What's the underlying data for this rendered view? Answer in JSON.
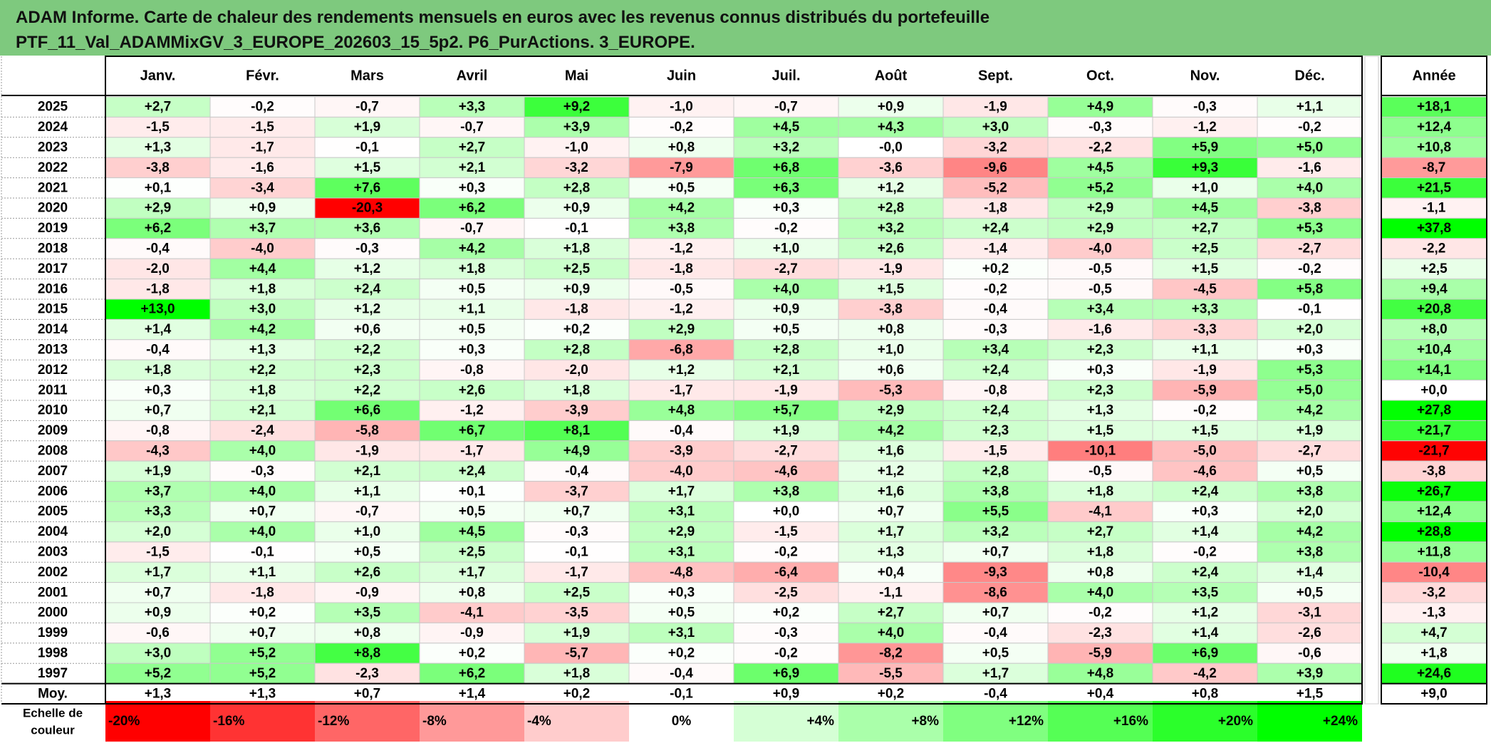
{
  "title_lines": [
    "ADAM Informe. Carte de chaleur des rendements mensuels en euros avec les revenus connus distribués du portefeuille",
    "PTF_11_Val_ADAMMixGV_3_EUROPE_202603_15_5p2. P6_PurActions. 3_EUROPE."
  ],
  "chart_data": {
    "type": "heatmap",
    "months": [
      "Janv.",
      "Févr.",
      "Mars",
      "Avril",
      "Mai",
      "Juin",
      "Juil.",
      "Août",
      "Sept.",
      "Oct.",
      "Nov.",
      "Déc."
    ],
    "annual_header": "Année",
    "rows": [
      {
        "year": "2025",
        "values": [
          "+2,7",
          "-0,2",
          "-0,7",
          "+3,3",
          "+9,2",
          "-1,0",
          "-0,7",
          "+0,9",
          "-1,9",
          "+4,9",
          "-0,3",
          "+1,1"
        ],
        "annual": "+18,1"
      },
      {
        "year": "2024",
        "values": [
          "-1,5",
          "-1,5",
          "+1,9",
          "-0,7",
          "+3,9",
          "-0,2",
          "+4,5",
          "+4,3",
          "+3,0",
          "-0,3",
          "-1,2",
          "-0,2"
        ],
        "annual": "+12,4"
      },
      {
        "year": "2023",
        "values": [
          "+1,3",
          "-1,7",
          "-0,1",
          "+2,7",
          "-1,0",
          "+0,8",
          "+3,2",
          "-0,0",
          "-3,2",
          "-2,2",
          "+5,9",
          "+5,0"
        ],
        "annual": "+10,8"
      },
      {
        "year": "2022",
        "values": [
          "-3,8",
          "-1,6",
          "+1,5",
          "+2,1",
          "-3,2",
          "-7,9",
          "+6,8",
          "-3,6",
          "-9,6",
          "+4,5",
          "+9,3",
          "-1,6"
        ],
        "annual": "-8,7"
      },
      {
        "year": "2021",
        "values": [
          "+0,1",
          "-3,4",
          "+7,6",
          "+0,3",
          "+2,8",
          "+0,5",
          "+6,3",
          "+1,2",
          "-5,2",
          "+5,2",
          "+1,0",
          "+4,0"
        ],
        "annual": "+21,5"
      },
      {
        "year": "2020",
        "values": [
          "+2,9",
          "+0,9",
          "-20,3",
          "+6,2",
          "+0,9",
          "+4,2",
          "+0,3",
          "+2,8",
          "-1,8",
          "+2,9",
          "+4,5",
          "-3,8"
        ],
        "annual": "-1,1"
      },
      {
        "year": "2019",
        "values": [
          "+6,2",
          "+3,7",
          "+3,6",
          "-0,7",
          "-0,1",
          "+3,8",
          "-0,2",
          "+3,2",
          "+2,4",
          "+2,9",
          "+2,7",
          "+5,3"
        ],
        "annual": "+37,8"
      },
      {
        "year": "2018",
        "values": [
          "-0,4",
          "-4,0",
          "-0,3",
          "+4,2",
          "+1,8",
          "-1,2",
          "+1,0",
          "+2,6",
          "-1,4",
          "-4,0",
          "+2,5",
          "-2,7"
        ],
        "annual": "-2,2"
      },
      {
        "year": "2017",
        "values": [
          "-2,0",
          "+4,4",
          "+1,2",
          "+1,8",
          "+2,5",
          "-1,8",
          "-2,7",
          "-1,9",
          "+0,2",
          "-0,5",
          "+1,5",
          "-0,2"
        ],
        "annual": "+2,5"
      },
      {
        "year": "2016",
        "values": [
          "-1,8",
          "+1,8",
          "+2,4",
          "+0,5",
          "+0,9",
          "-0,5",
          "+4,0",
          "+1,5",
          "-0,2",
          "-0,5",
          "-4,5",
          "+5,8"
        ],
        "annual": "+9,4"
      },
      {
        "year": "2015",
        "values": [
          "+13,0",
          "+3,0",
          "+1,2",
          "+1,1",
          "-1,8",
          "-1,2",
          "+0,9",
          "-3,8",
          "-0,4",
          "+3,4",
          "+3,3",
          "-0,1"
        ],
        "annual": "+20,8"
      },
      {
        "year": "2014",
        "values": [
          "+1,4",
          "+4,2",
          "+0,6",
          "+0,5",
          "+0,2",
          "+2,9",
          "+0,5",
          "+0,8",
          "-0,3",
          "-1,6",
          "-3,3",
          "+2,0"
        ],
        "annual": "+8,0"
      },
      {
        "year": "2013",
        "values": [
          "-0,4",
          "+1,3",
          "+2,2",
          "+0,3",
          "+2,8",
          "-6,8",
          "+2,8",
          "+1,0",
          "+3,4",
          "+2,3",
          "+1,1",
          "+0,3"
        ],
        "annual": "+10,4"
      },
      {
        "year": "2012",
        "values": [
          "+1,8",
          "+2,2",
          "+2,3",
          "-0,8",
          "-2,0",
          "+1,2",
          "+2,1",
          "+0,6",
          "+2,4",
          "+0,3",
          "-1,9",
          "+5,3"
        ],
        "annual": "+14,1"
      },
      {
        "year": "2011",
        "values": [
          "+0,3",
          "+1,8",
          "+2,2",
          "+2,6",
          "+1,8",
          "-1,7",
          "-1,9",
          "-5,3",
          "-0,8",
          "+2,3",
          "-5,9",
          "+5,0"
        ],
        "annual": "+0,0"
      },
      {
        "year": "2010",
        "values": [
          "+0,7",
          "+2,1",
          "+6,6",
          "-1,2",
          "-3,9",
          "+4,8",
          "+5,7",
          "+2,9",
          "+2,4",
          "+1,3",
          "-0,2",
          "+4,2"
        ],
        "annual": "+27,8"
      },
      {
        "year": "2009",
        "values": [
          "-0,8",
          "-2,4",
          "-5,8",
          "+6,7",
          "+8,1",
          "-0,4",
          "+1,9",
          "+4,2",
          "+2,3",
          "+1,5",
          "+1,5",
          "+1,9"
        ],
        "annual": "+21,7"
      },
      {
        "year": "2008",
        "values": [
          "-4,3",
          "+4,0",
          "-1,9",
          "-1,7",
          "+4,9",
          "-3,9",
          "-2,7",
          "+1,6",
          "-1,5",
          "-10,1",
          "-5,0",
          "-2,7"
        ],
        "annual": "-21,7"
      },
      {
        "year": "2007",
        "values": [
          "+1,9",
          "-0,3",
          "+2,1",
          "+2,4",
          "-0,4",
          "-4,0",
          "-4,6",
          "+1,2",
          "+2,8",
          "-0,5",
          "-4,6",
          "+0,5"
        ],
        "annual": "-3,8"
      },
      {
        "year": "2006",
        "values": [
          "+3,7",
          "+4,0",
          "+1,1",
          "+0,1",
          "-3,7",
          "+1,7",
          "+3,8",
          "+1,6",
          "+3,8",
          "+1,8",
          "+2,4",
          "+3,8"
        ],
        "annual": "+26,7"
      },
      {
        "year": "2005",
        "values": [
          "+3,3",
          "+0,7",
          "-0,7",
          "+0,5",
          "+0,7",
          "+3,1",
          "+0,0",
          "+0,7",
          "+5,5",
          "-4,1",
          "+0,3",
          "+2,0"
        ],
        "annual": "+12,4"
      },
      {
        "year": "2004",
        "values": [
          "+2,0",
          "+4,0",
          "+1,0",
          "+4,5",
          "-0,3",
          "+2,9",
          "-1,5",
          "+1,7",
          "+3,2",
          "+2,7",
          "+1,4",
          "+4,2"
        ],
        "annual": "+28,8"
      },
      {
        "year": "2003",
        "values": [
          "-1,5",
          "-0,1",
          "+0,5",
          "+2,5",
          "-0,1",
          "+3,1",
          "-0,2",
          "+1,3",
          "+0,7",
          "+1,8",
          "-0,2",
          "+3,8"
        ],
        "annual": "+11,8"
      },
      {
        "year": "2002",
        "values": [
          "+1,7",
          "+1,1",
          "+2,6",
          "+1,7",
          "-1,7",
          "-4,8",
          "-6,4",
          "+0,4",
          "-9,3",
          "+0,8",
          "+2,4",
          "+1,4"
        ],
        "annual": "-10,4"
      },
      {
        "year": "2001",
        "values": [
          "+0,7",
          "-1,8",
          "-0,9",
          "+0,8",
          "+2,5",
          "+0,3",
          "-2,5",
          "-1,1",
          "-8,6",
          "+4,0",
          "+3,5",
          "+0,5"
        ],
        "annual": "-3,2"
      },
      {
        "year": "2000",
        "values": [
          "+0,9",
          "+0,2",
          "+3,5",
          "-4,1",
          "-3,5",
          "+0,5",
          "+0,2",
          "+2,7",
          "+0,7",
          "-0,2",
          "+1,2",
          "-3,1"
        ],
        "annual": "-1,3"
      },
      {
        "year": "1999",
        "values": [
          "-0,6",
          "+0,7",
          "+0,8",
          "-0,9",
          "+1,9",
          "+3,1",
          "-0,3",
          "+4,0",
          "-0,4",
          "-2,3",
          "+1,4",
          "-2,6"
        ],
        "annual": "+4,7"
      },
      {
        "year": "1998",
        "values": [
          "+3,0",
          "+5,2",
          "+8,8",
          "+0,2",
          "-5,7",
          "+0,2",
          "-0,2",
          "-8,2",
          "+0,5",
          "-5,9",
          "+6,9",
          "-0,6"
        ],
        "annual": "+1,8"
      },
      {
        "year": "1997",
        "values": [
          "+5,2",
          "+5,2",
          "-2,3",
          "+6,2",
          "+1,8",
          "-0,4",
          "+6,9",
          "-5,5",
          "+1,7",
          "+4,8",
          "-4,2",
          "+3,9"
        ],
        "annual": "+24,6"
      }
    ],
    "average": {
      "label": "Moy.",
      "values": [
        "+1,3",
        "+1,3",
        "+0,7",
        "+1,4",
        "+0,2",
        "-0,1",
        "+0,9",
        "+0,2",
        "-0,4",
        "+0,4",
        "+0,8",
        "+1,5"
      ],
      "annual": "+9,0"
    },
    "color_scale": {
      "label_lines": [
        "Echelle de",
        "couleur"
      ],
      "steps": [
        {
          "label": "-20%",
          "value": -20
        },
        {
          "label": "-16%",
          "value": -16
        },
        {
          "label": "-12%",
          "value": -12
        },
        {
          "label": "-8%",
          "value": -8
        },
        {
          "label": "-4%",
          "value": -4
        },
        {
          "label": "0%",
          "value": 0
        },
        {
          "label": "+4%",
          "value": 4
        },
        {
          "label": "+8%",
          "value": 8
        },
        {
          "label": "+12%",
          "value": 12
        },
        {
          "label": "+16%",
          "value": 16
        },
        {
          "label": "+20%",
          "value": 20
        },
        {
          "label": "+24%",
          "value": 24
        }
      ]
    },
    "colors": {
      "negative_max": "#ff0000",
      "neutral": "#ffffff",
      "positive_max": "#00ff00",
      "title_band": "#7ec97e"
    }
  }
}
